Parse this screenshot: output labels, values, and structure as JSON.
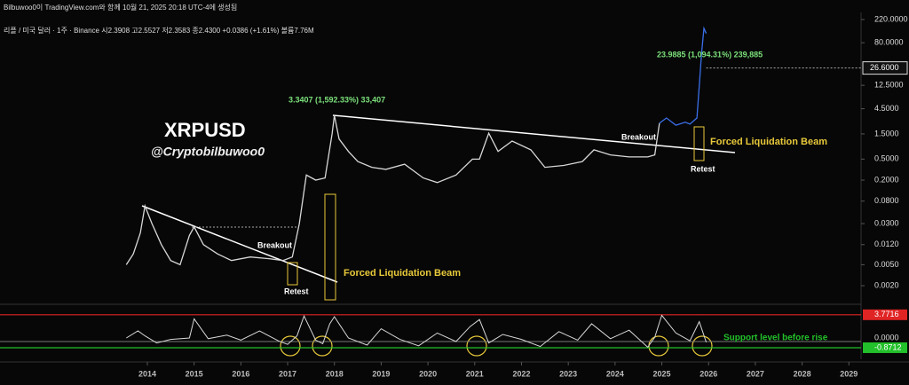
{
  "chart_data": {
    "type": "line",
    "source_note": "Bilbuwoo0이 TradingView.com와 함께 10월 21, 2025 20:18 UTC-4에 생성됨",
    "symbol_info": "리플 / 미국 달러 · 1주 · Binance  시2.3908  고2.5527  저2.3583  종2.4300  +0.0386 (+1.61%)  볼륨7.76M",
    "title": "XRPUSD",
    "subtitle": "@Cryptobilbuwoo0",
    "log_y": true,
    "xlim": [
      2010.85,
      2029.26
    ],
    "xticks": [
      2014,
      2015,
      2016,
      2017,
      2018,
      2019,
      2020,
      2021,
      2022,
      2023,
      2024,
      2025,
      2026,
      2027,
      2028,
      2029
    ],
    "ylim": [
      0.001,
      300
    ],
    "yticks": [
      {
        "value": 220,
        "label": "220.0000"
      },
      {
        "value": 80,
        "label": "80.0000"
      },
      {
        "value": 12.5,
        "label": "12.5000"
      },
      {
        "value": 4.5,
        "label": "4.5000"
      },
      {
        "value": 1.5,
        "label": "1.5000"
      },
      {
        "value": 0.5,
        "label": "0.5000"
      },
      {
        "value": 0.2,
        "label": "0.2000"
      },
      {
        "value": 0.08,
        "label": "0.0800"
      },
      {
        "value": 0.03,
        "label": "0.0300"
      },
      {
        "value": 0.012,
        "label": "0.0120"
      },
      {
        "value": 0.005,
        "label": "0.0050"
      },
      {
        "value": 0.002,
        "label": "0.0020"
      }
    ],
    "price_marker": {
      "value": 26.6,
      "label": "26.6000"
    },
    "y2lim": [
      -2.5,
      5
    ],
    "y2ticks": [
      {
        "value": 0,
        "label": "0.0000"
      }
    ],
    "reference_lines": [
      {
        "value": 3.7716,
        "color": "#e02424"
      },
      {
        "value": -0.8712,
        "color": "#22c02a"
      }
    ],
    "annotations": [
      "3.3407 (1,592.33%) 33,407",
      "23.9885 (1,094.31%) 239,885",
      "Breakout",
      "Retest",
      "Forced Liquidation Beam",
      "Breakout",
      "Forced Liquidation Beam",
      "Retest",
      "Support level before rise"
    ],
    "series": [
      {
        "color": "#d8d8d8",
        "x": [
          2013.55,
          2013.7,
          2013.85,
          2013.95,
          2014.1,
          2014.3,
          2014.5,
          2014.7,
          2014.9,
          2015.0,
          2015.2,
          2015.5,
          2015.8,
          2016.2,
          2016.6,
          2016.9,
          2017.1,
          2017.25,
          2017.4,
          2017.6,
          2017.8,
          2017.95,
          2018.0,
          2018.1,
          2018.3,
          2018.5,
          2018.8,
          2019.1,
          2019.5,
          2019.9,
          2020.2,
          2020.6,
          2020.95,
          2021.1,
          2021.3,
          2021.5,
          2021.8,
          2022.2,
          2022.5,
          2022.9,
          2023.3,
          2023.55,
          2023.9,
          2024.3,
          2024.7,
          2024.85,
          2024.95
        ],
        "values": [
          0.005,
          0.008,
          0.02,
          0.065,
          0.03,
          0.012,
          0.006,
          0.005,
          0.018,
          0.026,
          0.012,
          0.008,
          0.006,
          0.007,
          0.0065,
          0.006,
          0.007,
          0.03,
          0.25,
          0.2,
          0.22,
          1.5,
          3.36,
          1.2,
          0.7,
          0.45,
          0.35,
          0.32,
          0.4,
          0.22,
          0.18,
          0.25,
          0.5,
          0.5,
          1.55,
          0.7,
          1.1,
          0.75,
          0.35,
          0.38,
          0.45,
          0.75,
          0.6,
          0.55,
          0.55,
          0.6,
          2.4
        ]
      },
      {
        "color": "#3a6fe8",
        "x": [
          2024.95,
          2025.1,
          2025.3,
          2025.5,
          2025.6,
          2025.75,
          2025.8,
          2025.85,
          2025.9,
          2025.95
        ],
        "values": [
          2.4,
          3.0,
          2.2,
          2.5,
          2.3,
          3.0,
          12,
          50,
          150,
          120
        ]
      },
      {
        "color": "#d8d8d8",
        "axis": "y2",
        "x": [
          2013.55,
          2013.8,
          2013.95,
          2014.2,
          2014.5,
          2014.9,
          2015.0,
          2015.3,
          2015.7,
          2016.0,
          2016.4,
          2016.8,
          2017.0,
          2017.2,
          2017.35,
          2017.6,
          2017.75,
          2017.9,
          2018.0,
          2018.3,
          2018.7,
          2019.0,
          2019.4,
          2019.8,
          2020.2,
          2020.6,
          2020.9,
          2021.1,
          2021.3,
          2021.6,
          2022.0,
          2022.4,
          2022.8,
          2023.2,
          2023.5,
          2023.9,
          2024.3,
          2024.7,
          2024.85,
          2025.0,
          2025.3,
          2025.6,
          2025.8,
          2025.95
        ],
        "values": [
          0.5,
          1.5,
          0.8,
          -0.2,
          0.3,
          0.5,
          3.2,
          0.4,
          0.9,
          0.2,
          1.5,
          0.1,
          -0.4,
          0.8,
          3.6,
          0.2,
          -0.3,
          2.5,
          3.5,
          0.5,
          -0.5,
          1.8,
          0.3,
          -0.6,
          1.2,
          0.0,
          2.1,
          3.1,
          -0.2,
          1.0,
          0.3,
          -0.7,
          1.4,
          0.2,
          2.5,
          0.4,
          1.6,
          -0.8,
          0.6,
          3.7,
          1.2,
          0.1,
          2.8,
          -0.1
        ]
      }
    ]
  }
}
